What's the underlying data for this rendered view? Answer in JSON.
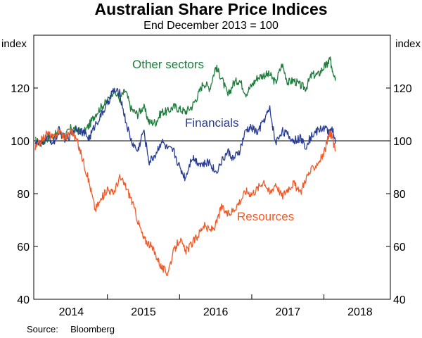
{
  "chart_data": {
    "type": "line",
    "title": "Australian Share Price Indices",
    "subtitle": "End December 2013 = 100",
    "ylabel_left": "index",
    "ylabel_right": "index",
    "ylim": [
      40,
      140
    ],
    "yticks": [
      40,
      60,
      80,
      100,
      120
    ],
    "baseline": 100,
    "xlim": [
      2013.98,
      2018.92
    ],
    "x_tick_labels": [
      {
        "label": "2014",
        "x": 2014.5
      },
      {
        "label": "2015",
        "x": 2015.5
      },
      {
        "label": "2016",
        "x": 2016.5
      },
      {
        "label": "2017",
        "x": 2017.5
      },
      {
        "label": "2018",
        "x": 2018.5
      }
    ],
    "x_year_boundaries": [
      2015,
      2016,
      2017,
      2018
    ],
    "series": [
      {
        "name": "Other sectors",
        "color": "#1e7d3c",
        "x": [
          2014.0,
          2014.08,
          2014.17,
          2014.25,
          2014.33,
          2014.42,
          2014.5,
          2014.58,
          2014.67,
          2014.75,
          2014.83,
          2014.92,
          2015.0,
          2015.08,
          2015.17,
          2015.25,
          2015.33,
          2015.42,
          2015.5,
          2015.58,
          2015.67,
          2015.75,
          2015.83,
          2015.92,
          2016.0,
          2016.08,
          2016.17,
          2016.25,
          2016.33,
          2016.42,
          2016.5,
          2016.58,
          2016.67,
          2016.75,
          2016.83,
          2016.92,
          2017.0,
          2017.08,
          2017.17,
          2017.25,
          2017.33,
          2017.42,
          2017.5,
          2017.58,
          2017.67,
          2017.75,
          2017.83,
          2017.92,
          2018.0,
          2018.05,
          2018.08,
          2018.12,
          2018.16
        ],
        "values": [
          100,
          99,
          101,
          102,
          103,
          102,
          105,
          104,
          103,
          106,
          110,
          113,
          115,
          119,
          116,
          119,
          112,
          110,
          113,
          107,
          107,
          111,
          111,
          113,
          112,
          111,
          113,
          117,
          122,
          120,
          128,
          124,
          117,
          122,
          123,
          118,
          121,
          124,
          125,
          125,
          122,
          129,
          122,
          123,
          121,
          120,
          125,
          125,
          128,
          129,
          131,
          127,
          124
        ]
      },
      {
        "name": "Financials",
        "color": "#283c96",
        "x": [
          2014.0,
          2014.08,
          2014.17,
          2014.25,
          2014.33,
          2014.42,
          2014.5,
          2014.58,
          2014.67,
          2014.75,
          2014.83,
          2014.92,
          2015.0,
          2015.08,
          2015.17,
          2015.25,
          2015.33,
          2015.42,
          2015.5,
          2015.58,
          2015.67,
          2015.75,
          2015.83,
          2015.92,
          2016.0,
          2016.08,
          2016.17,
          2016.25,
          2016.33,
          2016.42,
          2016.5,
          2016.58,
          2016.67,
          2016.75,
          2016.83,
          2016.92,
          2017.0,
          2017.08,
          2017.17,
          2017.25,
          2017.33,
          2017.42,
          2017.5,
          2017.58,
          2017.67,
          2017.75,
          2017.83,
          2017.92,
          2018.0,
          2018.05,
          2018.08,
          2018.12,
          2018.16
        ],
        "values": [
          100,
          98,
          102,
          99,
          104,
          100,
          103,
          105,
          103,
          101,
          106,
          110,
          114,
          119,
          118,
          108,
          100,
          96,
          104,
          92,
          95,
          100,
          97,
          96,
          90,
          86,
          94,
          92,
          91,
          92,
          88,
          92,
          96,
          93,
          96,
          104,
          105,
          103,
          108,
          112,
          99,
          104,
          102,
          100,
          101,
          98,
          102,
          104,
          105,
          104,
          103,
          104,
          99
        ]
      },
      {
        "name": "Resources",
        "color": "#f05a28",
        "x": [
          2014.0,
          2014.08,
          2014.17,
          2014.25,
          2014.33,
          2014.42,
          2014.5,
          2014.58,
          2014.67,
          2014.75,
          2014.83,
          2014.92,
          2015.0,
          2015.08,
          2015.17,
          2015.25,
          2015.33,
          2015.42,
          2015.5,
          2015.58,
          2015.67,
          2015.75,
          2015.83,
          2015.92,
          2016.0,
          2016.08,
          2016.17,
          2016.25,
          2016.33,
          2016.42,
          2016.5,
          2016.58,
          2016.67,
          2016.75,
          2016.83,
          2016.92,
          2017.0,
          2017.08,
          2017.17,
          2017.25,
          2017.33,
          2017.42,
          2017.5,
          2017.58,
          2017.67,
          2017.75,
          2017.83,
          2017.92,
          2018.0,
          2018.05,
          2018.08,
          2018.12,
          2018.16
        ],
        "values": [
          97,
          100,
          103,
          101,
          104,
          101,
          104,
          100,
          92,
          84,
          74,
          78,
          82,
          80,
          86,
          83,
          78,
          70,
          63,
          61,
          57,
          52,
          50,
          58,
          63,
          58,
          61,
          64,
          68,
          66,
          68,
          75,
          72,
          74,
          77,
          81,
          80,
          82,
          85,
          80,
          84,
          79,
          82,
          84,
          80,
          86,
          89,
          92,
          95,
          100,
          103,
          101,
          96
        ]
      }
    ],
    "labels": [
      {
        "text": "Other sectors",
        "series": "Other sectors"
      },
      {
        "text": "Financials",
        "series": "Financials"
      },
      {
        "text": "Resources",
        "series": "Resources"
      }
    ],
    "source": {
      "label": "Source:",
      "value": "Bloomberg"
    }
  }
}
